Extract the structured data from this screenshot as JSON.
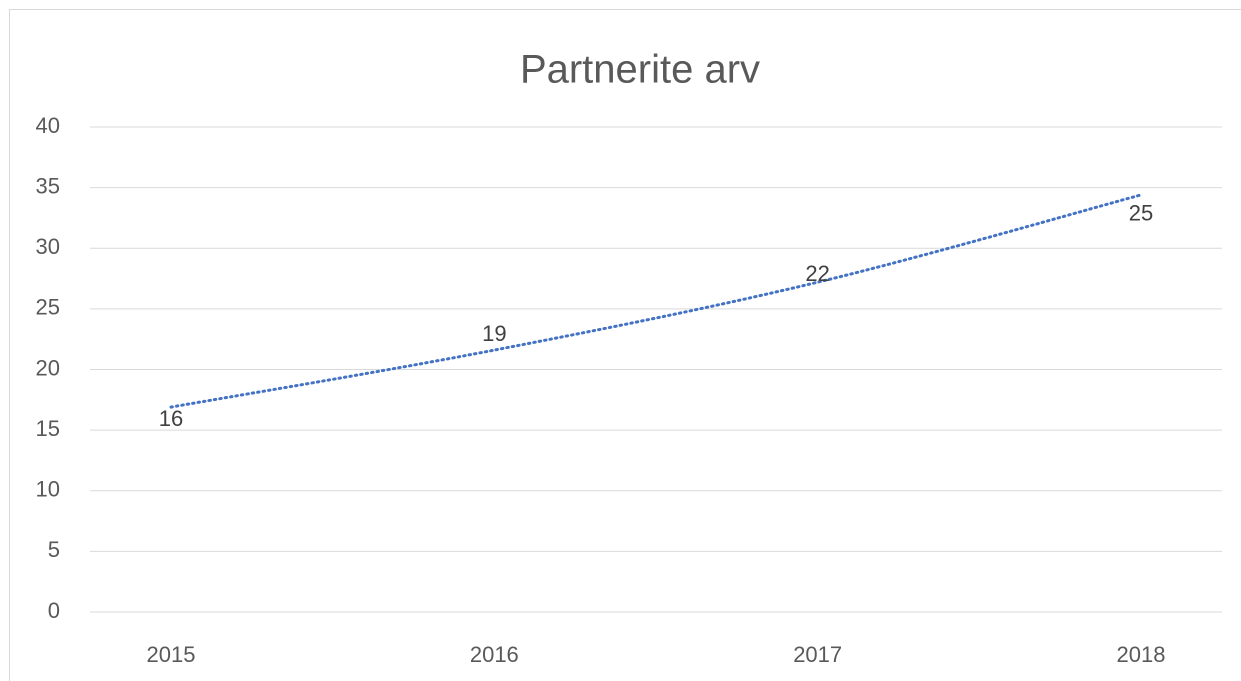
{
  "chart_data": {
    "type": "line",
    "title": "Partnerite arv",
    "categories": [
      "2015",
      "2016",
      "2017",
      "2018"
    ],
    "series": [
      {
        "values": [
          16,
          19,
          22,
          25
        ]
      }
    ],
    "trendline": {
      "color": "#4472c4",
      "values": [
        16.9,
        21.6,
        27.2,
        34.4
      ]
    },
    "ylim": [
      0,
      40
    ],
    "yticks": [
      0,
      5,
      10,
      15,
      20,
      25,
      30,
      35,
      40
    ],
    "grid": true
  }
}
